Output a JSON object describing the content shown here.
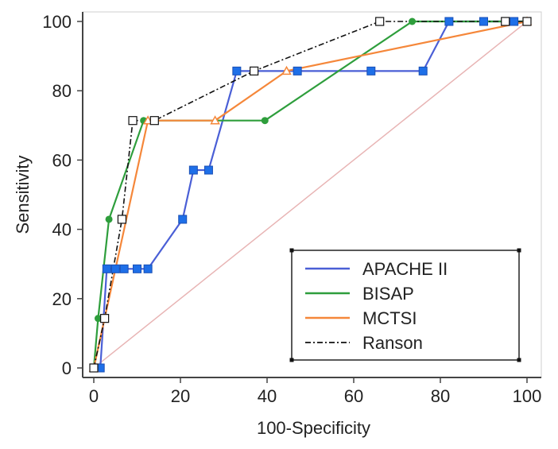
{
  "chart_data": {
    "type": "line",
    "xlabel": "100-Specificity",
    "ylabel": "Sensitivity",
    "xlim": [
      0,
      100
    ],
    "ylim": [
      0,
      100
    ],
    "xticks": [
      "0",
      "20",
      "40",
      "60",
      "80",
      "100"
    ],
    "yticks": [
      "0",
      "20",
      "40",
      "60",
      "80",
      "100"
    ],
    "grid": false,
    "legend_position": "bottom-right",
    "reference_line": {
      "x": [
        0,
        100
      ],
      "y": [
        0,
        100
      ],
      "color": "#e8b4b4"
    },
    "series": [
      {
        "name": "APACHE II",
        "color": "#4a5fd6",
        "marker": "square",
        "marker_color": "#1e6fe8",
        "dash": "solid",
        "x": [
          0,
          1.5,
          3,
          5,
          7,
          10,
          12.5,
          20.5,
          23,
          26.5,
          33,
          47,
          64,
          76,
          82,
          90,
          97,
          100
        ],
        "y": [
          0,
          0,
          28.6,
          28.6,
          28.6,
          28.6,
          28.6,
          42.9,
          57.1,
          57.1,
          85.7,
          85.7,
          85.7,
          85.7,
          100,
          100,
          100,
          100
        ]
      },
      {
        "name": "BISAP",
        "color": "#2e9e3c",
        "marker": "circle",
        "marker_color": "#2e9e3c",
        "dash": "solid",
        "x": [
          0,
          1,
          3.5,
          11.5,
          39.5,
          73.5,
          100
        ],
        "y": [
          0,
          14.3,
          42.9,
          71.4,
          71.4,
          100,
          100
        ]
      },
      {
        "name": "MCTSI",
        "color": "#f5873a",
        "marker": "triangle",
        "marker_color": "#f5873a",
        "dash": "solid",
        "x": [
          0,
          12.5,
          28,
          44.5,
          100
        ],
        "y": [
          0,
          71.4,
          71.4,
          85.7,
          100
        ]
      },
      {
        "name": "Ranson",
        "color": "#111111",
        "marker": "open-square",
        "marker_color": "#ffffff",
        "dash": "dash-dot",
        "x": [
          0,
          2.5,
          6.5,
          9,
          14,
          37,
          66,
          95,
          100
        ],
        "y": [
          0,
          14.3,
          42.9,
          71.4,
          71.4,
          85.7,
          100,
          100,
          100
        ]
      }
    ]
  }
}
